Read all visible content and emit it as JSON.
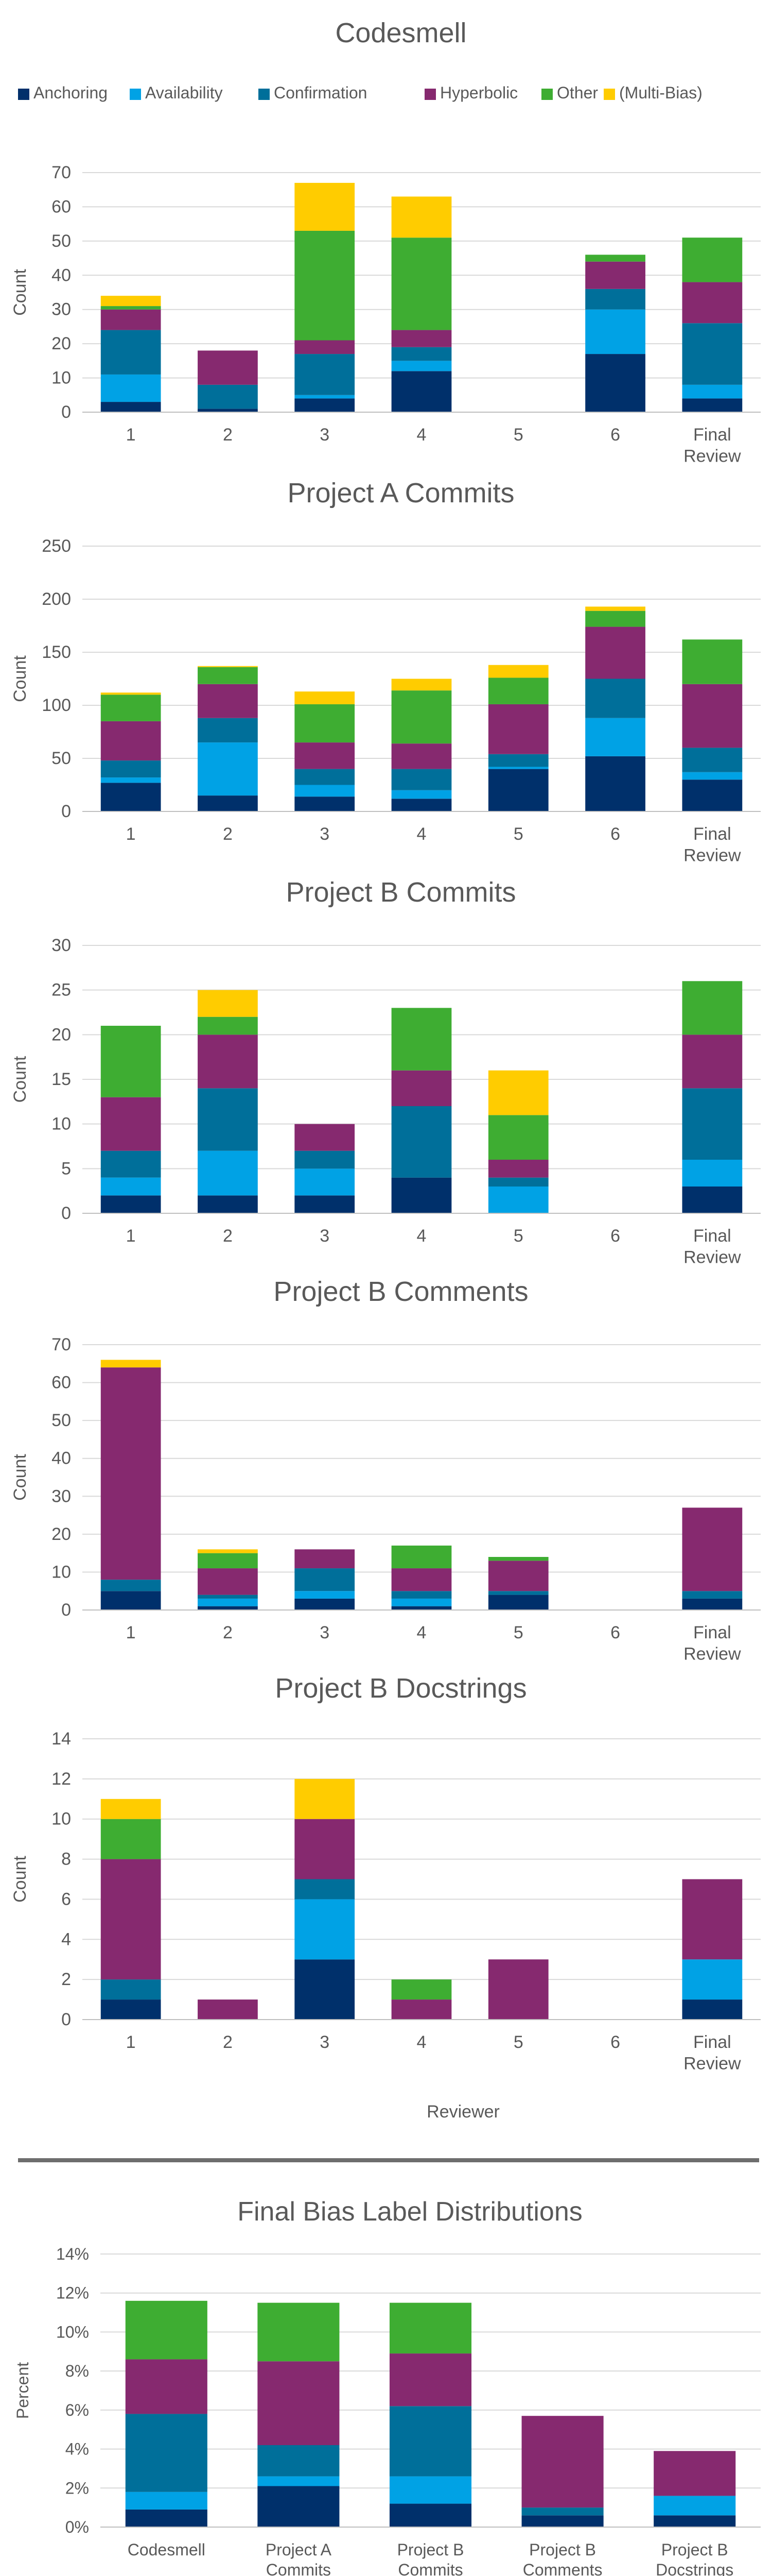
{
  "figure": {
    "legend": [
      {
        "name": "Anchoring",
        "color": "#00306B"
      },
      {
        "name": "Availability",
        "color": "#00A2E5"
      },
      {
        "name": "Confirmation",
        "color": "#006F9A"
      },
      {
        "name": "Hyperbolic",
        "color": "#86296F"
      },
      {
        "name": "Other",
        "color": "#3EAD32"
      },
      {
        "name": "(Multi-Bias)",
        "color": "#FFCC00"
      }
    ],
    "x_axis_title": "Reviewer",
    "divider_color": "#6E6E6E",
    "text_color": "#595959",
    "grid_color": "#D9D9D9"
  },
  "chart_data": [
    {
      "type": "bar",
      "stacked": true,
      "title": "Codesmell",
      "ylabel": "Count",
      "ylim": [
        0,
        70
      ],
      "ytick_step": 10,
      "grid": true,
      "categories": [
        "1",
        "2",
        "3",
        "4",
        "5",
        "6",
        "Final Review"
      ],
      "series": [
        {
          "name": "Anchoring",
          "values": [
            3,
            1,
            4,
            12,
            0,
            17,
            4
          ]
        },
        {
          "name": "Availability",
          "values": [
            8,
            0,
            1,
            3,
            0,
            13,
            4
          ]
        },
        {
          "name": "Confirmation",
          "values": [
            13,
            7,
            12,
            4,
            0,
            6,
            18
          ]
        },
        {
          "name": "Hyperbolic",
          "values": [
            6,
            10,
            4,
            5,
            0,
            8,
            12
          ]
        },
        {
          "name": "Other",
          "values": [
            1,
            0,
            32,
            27,
            0,
            2,
            13
          ]
        },
        {
          "name": "(Multi-Bias)",
          "values": [
            3,
            0,
            14,
            12,
            0,
            0,
            0
          ]
        }
      ]
    },
    {
      "type": "bar",
      "stacked": true,
      "title": "Project A Commits",
      "ylabel": "Count",
      "ylim": [
        0,
        250
      ],
      "ytick_step": 50,
      "grid": true,
      "categories": [
        "1",
        "2",
        "3",
        "4",
        "5",
        "6",
        "Final Review"
      ],
      "series": [
        {
          "name": "Anchoring",
          "values": [
            27,
            15,
            14,
            12,
            40,
            52,
            30
          ]
        },
        {
          "name": "Availability",
          "values": [
            5,
            50,
            11,
            8,
            2,
            36,
            7
          ]
        },
        {
          "name": "Confirmation",
          "values": [
            16,
            23,
            15,
            20,
            12,
            37,
            23
          ]
        },
        {
          "name": "Hyperbolic",
          "values": [
            37,
            32,
            25,
            24,
            47,
            49,
            60
          ]
        },
        {
          "name": "Other",
          "values": [
            25,
            16,
            36,
            50,
            25,
            15,
            42
          ]
        },
        {
          "name": "(Multi-Bias)",
          "values": [
            2,
            1,
            12,
            11,
            12,
            4,
            0
          ]
        }
      ]
    },
    {
      "type": "bar",
      "stacked": true,
      "title": "Project B Commits",
      "ylabel": "Count",
      "ylim": [
        0,
        30
      ],
      "ytick_step": 5,
      "grid": true,
      "categories": [
        "1",
        "2",
        "3",
        "4",
        "5",
        "6",
        "Final Review"
      ],
      "series": [
        {
          "name": "Anchoring",
          "values": [
            2,
            2,
            2,
            4,
            0,
            0,
            3
          ]
        },
        {
          "name": "Availability",
          "values": [
            2,
            5,
            3,
            0,
            3,
            0,
            3
          ]
        },
        {
          "name": "Confirmation",
          "values": [
            3,
            7,
            2,
            8,
            1,
            0,
            8
          ]
        },
        {
          "name": "Hyperbolic",
          "values": [
            6,
            6,
            3,
            4,
            2,
            0,
            6
          ]
        },
        {
          "name": "Other",
          "values": [
            8,
            2,
            0,
            7,
            5,
            0,
            6
          ]
        },
        {
          "name": "(Multi-Bias)",
          "values": [
            0,
            3,
            0,
            0,
            5,
            0,
            0
          ]
        }
      ]
    },
    {
      "type": "bar",
      "stacked": true,
      "title": "Project B Comments",
      "ylabel": "Count",
      "ylim": [
        0,
        70
      ],
      "ytick_step": 10,
      "grid": true,
      "categories": [
        "1",
        "2",
        "3",
        "4",
        "5",
        "6",
        "Final Review"
      ],
      "series": [
        {
          "name": "Anchoring",
          "values": [
            5,
            1,
            3,
            1,
            4,
            0,
            3
          ]
        },
        {
          "name": "Availability",
          "values": [
            0,
            2,
            2,
            2,
            0,
            0,
            0
          ]
        },
        {
          "name": "Confirmation",
          "values": [
            3,
            1,
            6,
            2,
            1,
            0,
            2
          ]
        },
        {
          "name": "Hyperbolic",
          "values": [
            56,
            7,
            5,
            6,
            8,
            0,
            22
          ]
        },
        {
          "name": "Other",
          "values": [
            0,
            4,
            0,
            6,
            1,
            0,
            0
          ]
        },
        {
          "name": "(Multi-Bias)",
          "values": [
            2,
            1,
            0,
            0,
            0,
            0,
            0
          ]
        }
      ]
    },
    {
      "type": "bar",
      "stacked": true,
      "title": "Project B Docstrings",
      "ylabel": "Count",
      "ylim": [
        0,
        14
      ],
      "ytick_step": 2,
      "grid": true,
      "categories": [
        "1",
        "2",
        "3",
        "4",
        "5",
        "6",
        "Final Review"
      ],
      "series": [
        {
          "name": "Anchoring",
          "values": [
            1,
            0,
            3,
            0,
            0,
            0,
            1
          ]
        },
        {
          "name": "Availability",
          "values": [
            0,
            0,
            3,
            0,
            0,
            0,
            2
          ]
        },
        {
          "name": "Confirmation",
          "values": [
            1,
            0,
            1,
            0,
            0,
            0,
            0
          ]
        },
        {
          "name": "Hyperbolic",
          "values": [
            6,
            1,
            3,
            1,
            3,
            0,
            4
          ]
        },
        {
          "name": "Other",
          "values": [
            2,
            0,
            0,
            1,
            0,
            0,
            0
          ]
        },
        {
          "name": "(Multi-Bias)",
          "values": [
            1,
            0,
            2,
            0,
            0,
            0,
            0
          ]
        }
      ]
    },
    {
      "type": "bar",
      "stacked": true,
      "title": "Final Bias Label Distributions",
      "ylabel": "Percent",
      "ylim": [
        0,
        14
      ],
      "ytick_step": 2,
      "ytick_suffix": "%",
      "grid": true,
      "categories": [
        "Codesmell",
        "Project A Commits",
        "Project B Commits",
        "Project B Comments",
        "Project B Docstrings"
      ],
      "series": [
        {
          "name": "Anchoring",
          "values": [
            0.9,
            2.1,
            1.2,
            0.6,
            0.6
          ]
        },
        {
          "name": "Availability",
          "values": [
            0.9,
            0.5,
            1.4,
            0.0,
            1.0
          ]
        },
        {
          "name": "Confirmation",
          "values": [
            4.0,
            1.6,
            3.6,
            0.4,
            0.0
          ]
        },
        {
          "name": "Hyperbolic",
          "values": [
            2.8,
            4.3,
            2.7,
            4.7,
            2.3
          ]
        },
        {
          "name": "Other",
          "values": [
            3.0,
            3.0,
            2.6,
            0.0,
            0.0
          ]
        },
        {
          "name": "(Multi-Bias)",
          "values": [
            0.0,
            0.0,
            0.0,
            0.0,
            0.0
          ]
        }
      ]
    }
  ]
}
